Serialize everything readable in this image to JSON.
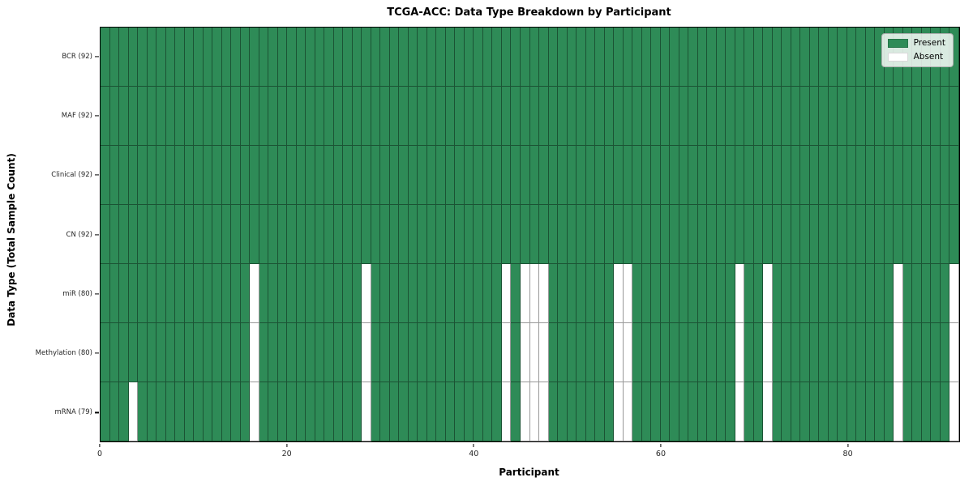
{
  "chart_data": {
    "type": "heatmap",
    "title": "TCGA-ACC: Data Type Breakdown by Participant",
    "xlabel": "Participant",
    "ylabel": "Data Type (Total Sample Count)",
    "n_participants": 92,
    "x_ticks": [
      0,
      20,
      40,
      60,
      80
    ],
    "rows": [
      {
        "label": "BCR (92)",
        "data_type": "BCR",
        "present_count": 92,
        "absent_participants": []
      },
      {
        "label": "MAF (92)",
        "data_type": "MAF",
        "present_count": 92,
        "absent_participants": []
      },
      {
        "label": "Clinical (92)",
        "data_type": "Clinical",
        "present_count": 92,
        "absent_participants": []
      },
      {
        "label": "CN (92)",
        "data_type": "CN",
        "present_count": 92,
        "absent_participants": []
      },
      {
        "label": "miR (80)",
        "data_type": "miR",
        "present_count": 80,
        "absent_participants": [
          16,
          28,
          43,
          45,
          46,
          47,
          55,
          56,
          68,
          71,
          85,
          91
        ]
      },
      {
        "label": "Methylation (80)",
        "data_type": "Methylation",
        "present_count": 80,
        "absent_participants": [
          16,
          28,
          43,
          45,
          46,
          47,
          55,
          56,
          68,
          71,
          85,
          91
        ]
      },
      {
        "label": "mRNA (79)",
        "data_type": "mRNA",
        "present_count": 79,
        "absent_participants": [
          3,
          16,
          28,
          43,
          45,
          46,
          47,
          55,
          56,
          68,
          71,
          85,
          91
        ]
      }
    ],
    "legend": {
      "position": "upper right",
      "items": [
        {
          "label": "Present",
          "color": "#2e8b57"
        },
        {
          "label": "Absent",
          "color": "#ffffff"
        }
      ]
    },
    "colors": {
      "present": "#2e8b57",
      "absent": "#ffffff",
      "grid_line": "rgba(0,0,0,0.40)",
      "frame": "#000000"
    },
    "grid": true
  }
}
